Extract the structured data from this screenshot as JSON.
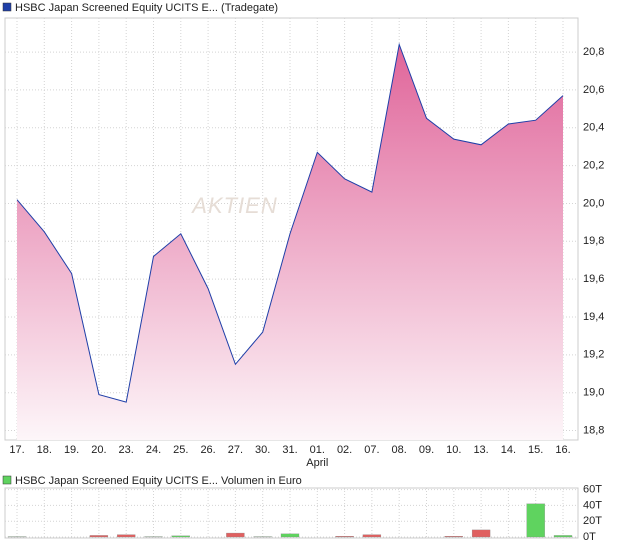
{
  "chart_data": [
    {
      "type": "area",
      "watermark": "AKTIEN",
      "categories": [
        "17.",
        "18.",
        "19.",
        "20.",
        "23.",
        "24.",
        "25.",
        "26.",
        "27.",
        "30.",
        "31.",
        "01.",
        "02.",
        "07.",
        "08.",
        "09.",
        "10.",
        "13.",
        "14.",
        "15.",
        "16."
      ],
      "month_label": "April",
      "series": [
        {
          "name": "HSBC Japan Screened Equity UCITS E... (Tradegate)",
          "color": "#1f3fa8",
          "values": [
            20.02,
            19.85,
            19.63,
            18.99,
            18.95,
            19.72,
            19.84,
            19.55,
            19.15,
            19.32,
            19.84,
            20.27,
            20.13,
            20.06,
            20.84,
            20.45,
            20.34,
            20.31,
            20.42,
            20.44,
            20.57
          ]
        }
      ],
      "fill_top": "#e0659a",
      "fill_bottom": "#fdf6f9",
      "ylim": [
        18.75,
        20.98
      ],
      "yticks": [
        {
          "value": 18.8,
          "label": "18,8"
        },
        {
          "value": 19.0,
          "label": "19,0"
        },
        {
          "value": 19.2,
          "label": "19,2"
        },
        {
          "value": 19.4,
          "label": "19,4"
        },
        {
          "value": 19.6,
          "label": "19,6"
        },
        {
          "value": 19.8,
          "label": "19,8"
        },
        {
          "value": 20.0,
          "label": "20,0"
        },
        {
          "value": 20.2,
          "label": "20,2"
        },
        {
          "value": 20.4,
          "label": "20,4"
        },
        {
          "value": 20.6,
          "label": "20,6"
        },
        {
          "value": 20.8,
          "label": "20,8"
        }
      ],
      "grid": true
    },
    {
      "type": "bar",
      "series": [
        {
          "name": "HSBC Japan Screened Equity UCITS E... Volumen in Euro",
          "color": "#5fd35f",
          "values": [
            0.5,
            null,
            null,
            2,
            3,
            0.5,
            1.5,
            null,
            5,
            0.5,
            4,
            null,
            1,
            3,
            null,
            null,
            1,
            9,
            null,
            42,
            2
          ],
          "colors": [
            "#5fd35f",
            null,
            null,
            "#e06060",
            "#e06060",
            "#5fd35f",
            "#5fd35f",
            null,
            "#e06060",
            "#5fd35f",
            "#5fd35f",
            null,
            "#e06060",
            "#e06060",
            null,
            null,
            "#e06060",
            "#e06060",
            null,
            "#5fd35f",
            "#5fd35f"
          ]
        }
      ],
      "ylim": [
        0,
        62
      ],
      "yticks": [
        {
          "value": 0,
          "label": "0T"
        },
        {
          "value": 20,
          "label": "20T"
        },
        {
          "value": 40,
          "label": "40T"
        },
        {
          "value": 60,
          "label": "60T"
        }
      ],
      "grid": true
    }
  ]
}
